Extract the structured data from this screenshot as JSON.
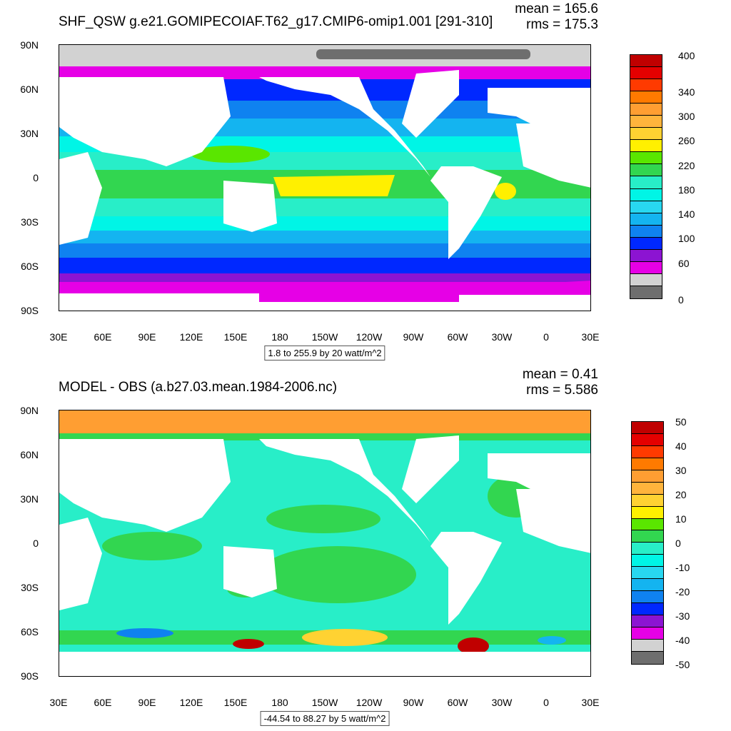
{
  "panels": [
    {
      "title": "SHF_QSW g.e21.GOMIPECOIAF.T62_g17.CMIP6-omip1.001 [291-310]",
      "mean": "mean = 165.6",
      "rms": "rms = 175.3",
      "range": "1.8 to 255.9 by 20 watt/m^2",
      "colorbar": {
        "colors": [
          "#c00000",
          "#e40000",
          "#ff3a00",
          "#ff7a00",
          "#ff9e32",
          "#ffb43c",
          "#ffd232",
          "#fff000",
          "#5ae600",
          "#32d650",
          "#28eec8",
          "#00f5e6",
          "#28d7f0",
          "#14b4f0",
          "#0f82f0",
          "#0028ff",
          "#8c14d2",
          "#e600e6",
          "#d2d2d2",
          "#6e6e6e"
        ],
        "labels": [
          "400",
          "340",
          "300",
          "260",
          "220",
          "180",
          "140",
          "100",
          "60",
          "0"
        ]
      }
    },
    {
      "title": "MODEL - OBS (a.b27.03.mean.1984-2006.nc)",
      "mean": "mean = 0.41",
      "rms": "rms = 5.586",
      "range": "-44.54 to 88.27 by 5 watt/m^2",
      "colorbar": {
        "colors": [
          "#c00000",
          "#e40000",
          "#ff3a00",
          "#ff7a00",
          "#ff9e32",
          "#ffb43c",
          "#ffd232",
          "#fff000",
          "#5ae600",
          "#32d650",
          "#28eec8",
          "#00f5e6",
          "#28d7f0",
          "#14b4f0",
          "#0f82f0",
          "#0028ff",
          "#8c14d2",
          "#e600e6",
          "#d2d2d2",
          "#6e6e6e"
        ],
        "labels": [
          "50",
          "40",
          "30",
          "20",
          "10",
          "0",
          "-10",
          "-20",
          "-30",
          "-40",
          "-50"
        ]
      }
    }
  ],
  "axes": {
    "y_labels": [
      "90N",
      "60N",
      "30N",
      "0",
      "30S",
      "60S",
      "90S"
    ],
    "x_labels": [
      "30E",
      "60E",
      "90E",
      "120E",
      "150E",
      "180",
      "150W",
      "120W",
      "90W",
      "60W",
      "30W",
      "0",
      "30E"
    ]
  }
}
